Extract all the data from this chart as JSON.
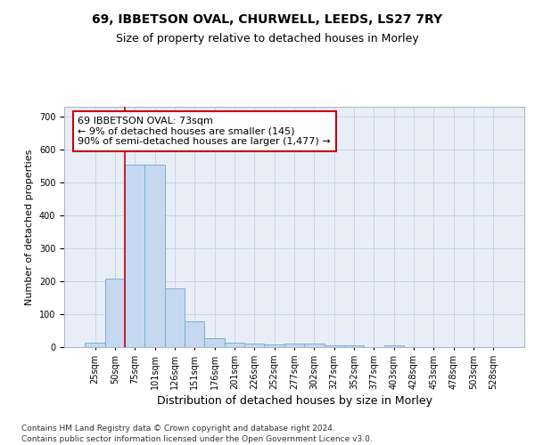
{
  "title": "69, IBBETSON OVAL, CHURWELL, LEEDS, LS27 7RY",
  "subtitle": "Size of property relative to detached houses in Morley",
  "xlabel": "Distribution of detached houses by size in Morley",
  "ylabel": "Number of detached properties",
  "bin_labels": [
    "25sqm",
    "50sqm",
    "75sqm",
    "101sqm",
    "126sqm",
    "151sqm",
    "176sqm",
    "201sqm",
    "226sqm",
    "252sqm",
    "277sqm",
    "302sqm",
    "327sqm",
    "352sqm",
    "377sqm",
    "403sqm",
    "428sqm",
    "453sqm",
    "478sqm",
    "503sqm",
    "528sqm"
  ],
  "bar_heights": [
    13,
    207,
    553,
    553,
    178,
    78,
    28,
    13,
    11,
    8,
    10,
    10,
    6,
    5,
    0,
    5,
    0,
    0,
    0,
    0,
    0
  ],
  "bar_color": "#c5d8f0",
  "bar_edge_color": "#7bafd4",
  "grid_color": "#c8d4e8",
  "background_color": "#e8eef8",
  "annotation_box_color": "#ffffff",
  "annotation_border_color": "#cc0000",
  "red_line_color": "#cc0000",
  "annotation_text_line1": "69 IBBETSON OVAL: 73sqm",
  "annotation_text_line2": "← 9% of detached houses are smaller (145)",
  "annotation_text_line3": "90% of semi-detached houses are larger (1,477) →",
  "red_line_x": 1.5,
  "ylim": [
    0,
    730
  ],
  "yticks": [
    0,
    100,
    200,
    300,
    400,
    500,
    600,
    700
  ],
  "footnote1": "Contains HM Land Registry data © Crown copyright and database right 2024.",
  "footnote2": "Contains public sector information licensed under the Open Government Licence v3.0.",
  "title_fontsize": 10,
  "subtitle_fontsize": 9,
  "xlabel_fontsize": 9,
  "ylabel_fontsize": 8,
  "tick_fontsize": 7,
  "annotation_fontsize": 8,
  "footnote_fontsize": 6.5
}
